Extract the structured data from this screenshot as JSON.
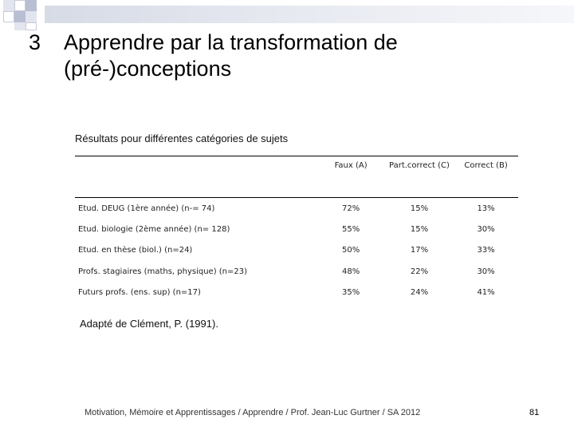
{
  "slide": {
    "number": "3",
    "title": "Apprendre par la transformation de (pré-)conceptions",
    "caption": "Résultats pour différentes catégories de sujets",
    "source": "Adapté de Clément, P. (1991).",
    "footer": "Motivation, Mémoire et Apprentissages / Apprendre / Prof. Jean-Luc Gurtner / SA 2012",
    "page": "81",
    "colors": {
      "decor_dark": "#b8bfd2",
      "decor_light": "#e2e5ee"
    }
  },
  "table": {
    "headers": [
      "",
      "Faux (A)",
      "Part.correct (C)",
      "Correct (B)"
    ],
    "rows": [
      {
        "label": "Etud. DEUG (1ère année) (n-= 74)",
        "faux": "72%",
        "part": "15%",
        "correct": "13%"
      },
      {
        "label": "Etud. biologie (2ème année) (n= 128)",
        "faux": "55%",
        "part": "15%",
        "correct": "30%"
      },
      {
        "label": "Etud. en thèse (biol.) (n=24)",
        "faux": "50%",
        "part": "17%",
        "correct": "33%"
      },
      {
        "label": "Profs. stagiaires (maths, physique) (n=23)",
        "faux": "48%",
        "part": "22%",
        "correct": "30%"
      },
      {
        "label": "Futurs profs. (ens. sup) (n=17)",
        "faux": "35%",
        "part": "24%",
        "correct": "41%"
      }
    ]
  }
}
